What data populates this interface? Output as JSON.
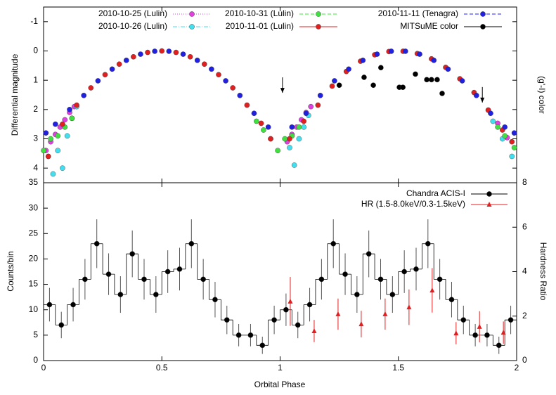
{
  "chart_data": [
    {
      "type": "scatter",
      "ylabel": "Differential magnitude",
      "y2label": "(g'-I) color",
      "xlim": [
        0,
        2
      ],
      "ylim": [
        4.5,
        -1.5
      ],
      "yticks": [
        -1,
        0,
        1,
        2,
        3,
        4
      ],
      "series": [
        {
          "name": "2010-10-25 (Lulin)",
          "color": "#e040e0",
          "line_style": "dotted",
          "x": [
            0.01,
            0.03,
            0.05,
            0.07,
            0.09,
            0.11,
            0.13,
            1.03,
            1.05,
            1.07,
            1.09,
            1.11,
            1.13,
            1.88,
            1.92,
            1.96
          ],
          "values": [
            3.4,
            3.1,
            2.85,
            2.6,
            2.35,
            2.1,
            1.9,
            3.1,
            2.85,
            2.6,
            2.35,
            2.1,
            1.9,
            2.02,
            2.47,
            2.96
          ]
        },
        {
          "name": "2010-10-26 (Lulin)",
          "color": "#40e0f0",
          "line_style": "dashdot",
          "x": [
            0.02,
            0.04,
            0.06,
            0.08,
            0.1,
            0.12,
            0.14,
            1.04,
            1.06,
            1.08,
            1.1,
            1.12,
            1.9,
            1.94,
            1.98
          ],
          "values": [
            3.6,
            4.2,
            3.4,
            4.0,
            2.9,
            2.3,
            1.9,
            3.3,
            3.9,
            3.0,
            2.6,
            2.2,
            2.4,
            3.0,
            3.6
          ]
        },
        {
          "name": "2010-10-31 (Lulin)",
          "color": "#40e040",
          "line_style": "dashed",
          "x": [
            0.0,
            0.03,
            0.06,
            0.09,
            0.12,
            0.9,
            0.93,
            0.96,
            0.99,
            1.02,
            1.05,
            1.08,
            1.92,
            1.95,
            1.99
          ],
          "values": [
            3.4,
            3.0,
            2.9,
            2.6,
            2.3,
            2.4,
            2.7,
            3.0,
            3.4,
            3.0,
            2.9,
            2.6,
            2.6,
            2.9,
            3.3
          ]
        },
        {
          "name": "2010-11-01 (Lulin)",
          "color": "#e02020",
          "line_style": "solid",
          "x": [
            0.02,
            0.08,
            0.14,
            0.2,
            0.26,
            0.32,
            0.38,
            0.44,
            0.5,
            0.56,
            0.62,
            0.68,
            0.74,
            0.8,
            0.86,
            0.92,
            0.96,
            1.04,
            1.1,
            1.16,
            1.22,
            1.28,
            1.34,
            1.4,
            1.46,
            1.52,
            1.58,
            1.64,
            1.7,
            1.76,
            1.82,
            1.88,
            1.94,
            1.98
          ],
          "values": [
            3.6,
            2.5,
            1.85,
            1.26,
            0.81,
            0.45,
            0.2,
            0.05,
            0.0,
            0.05,
            0.2,
            0.45,
            0.81,
            1.26,
            1.85,
            2.47,
            3.0,
            3.0,
            2.4,
            1.85,
            1.2,
            0.7,
            0.35,
            0.13,
            0.02,
            0.01,
            0.09,
            0.27,
            0.56,
            0.95,
            1.42,
            2.02,
            2.7,
            3.1
          ]
        },
        {
          "name": "2010-11-11 (Tenagra)",
          "color": "#2020e0",
          "line_style": "dashed",
          "x": [
            0.01,
            0.05,
            0.11,
            0.17,
            0.23,
            0.29,
            0.35,
            0.41,
            0.47,
            0.53,
            0.59,
            0.65,
            0.71,
            0.77,
            0.83,
            0.89,
            0.95,
            1.05,
            1.11,
            1.17,
            1.23,
            1.29,
            1.35,
            1.41,
            1.47,
            1.53,
            1.59,
            1.65,
            1.71,
            1.77,
            1.83,
            1.89,
            1.95,
            1.99
          ],
          "values": [
            2.8,
            2.5,
            2.0,
            1.52,
            1.02,
            0.62,
            0.32,
            0.11,
            0.01,
            0.01,
            0.11,
            0.32,
            0.62,
            1.02,
            1.52,
            2.13,
            2.6,
            2.6,
            2.13,
            1.52,
            1.02,
            0.62,
            0.32,
            0.11,
            0.01,
            0.01,
            0.11,
            0.32,
            0.62,
            1.02,
            1.52,
            2.13,
            2.6,
            2.8
          ]
        },
        {
          "name": "MITSuME color",
          "color": "#000000",
          "line_style": "solid",
          "x": [
            1.25,
            1.355,
            1.394,
            1.426,
            1.504,
            1.519,
            1.572,
            1.62,
            1.64,
            1.664,
            1.685
          ],
          "values": [
            1.17,
            0.9,
            1.17,
            0.57,
            1.24,
            1.24,
            0.79,
            0.98,
            0.98,
            0.98,
            1.45
          ],
          "upper_limits": {
            "x": [
              1.01,
              1.855
            ],
            "values": [
              1.43,
              1.76
            ]
          }
        }
      ]
    },
    {
      "type": "step",
      "xlabel": "Orbital Phase",
      "ylabel": "Counts/bin",
      "y2label": "Hardness Ratio",
      "xlim": [
        0,
        2
      ],
      "xticks": [
        0,
        0.5,
        1,
        1.5,
        2
      ],
      "ylim": [
        0,
        35
      ],
      "yticks": [
        0,
        5,
        10,
        15,
        20,
        25,
        30,
        35
      ],
      "y2lim": [
        0,
        8
      ],
      "y2ticks": [
        0,
        2,
        4,
        6,
        8
      ],
      "series": [
        {
          "name": "Chandra ACIS-I",
          "color": "#000000",
          "x": [
            0.025,
            0.075,
            0.125,
            0.175,
            0.225,
            0.275,
            0.325,
            0.375,
            0.425,
            0.475,
            0.525,
            0.575,
            0.625,
            0.675,
            0.725,
            0.775,
            0.825,
            0.875,
            0.925,
            0.975,
            1.025,
            1.075,
            1.125,
            1.175,
            1.225,
            1.275,
            1.325,
            1.375,
            1.425,
            1.475,
            1.525,
            1.575,
            1.625,
            1.675,
            1.725,
            1.775,
            1.825,
            1.875,
            1.925,
            1.975
          ],
          "values": [
            11,
            7,
            11,
            16,
            23,
            17,
            13,
            21,
            16,
            13,
            17.5,
            18,
            23,
            16,
            12,
            8,
            5,
            5,
            3,
            8,
            10,
            7,
            11,
            16,
            23,
            17,
            13,
            21,
            16,
            13,
            17.5,
            18,
            23,
            16,
            12,
            8,
            5,
            5,
            3,
            8
          ],
          "errors": [
            3.3,
            2.6,
            3.3,
            4,
            4.8,
            4.1,
            3.6,
            4.6,
            4,
            3.6,
            4.2,
            4.2,
            4.8,
            4,
            3.5,
            2.8,
            2.2,
            2.2,
            1.7,
            2.8,
            3.2,
            2.6,
            3.3,
            4,
            4.8,
            4.1,
            3.6,
            4.6,
            4,
            3.6,
            4.2,
            4.2,
            4.8,
            4,
            3.5,
            2.8,
            2.2,
            2.2,
            1.7,
            2.8
          ]
        },
        {
          "name": "HR (1.5-8.0keV/0.3-1.5keV)",
          "color": "#e02020",
          "axis": "y2",
          "x": [
            1.043,
            1.144,
            1.245,
            1.343,
            1.444,
            1.545,
            1.643,
            1.744,
            1.843,
            1.944
          ],
          "values": [
            2.66,
            1.33,
            2.09,
            1.64,
            2.09,
            2.4,
            3.16,
            1.23,
            1.52,
            1.26
          ],
          "errors": [
            1.1,
            0.5,
            0.7,
            0.6,
            0.7,
            0.8,
            1.0,
            0.5,
            0.7,
            0.5
          ]
        }
      ]
    }
  ]
}
